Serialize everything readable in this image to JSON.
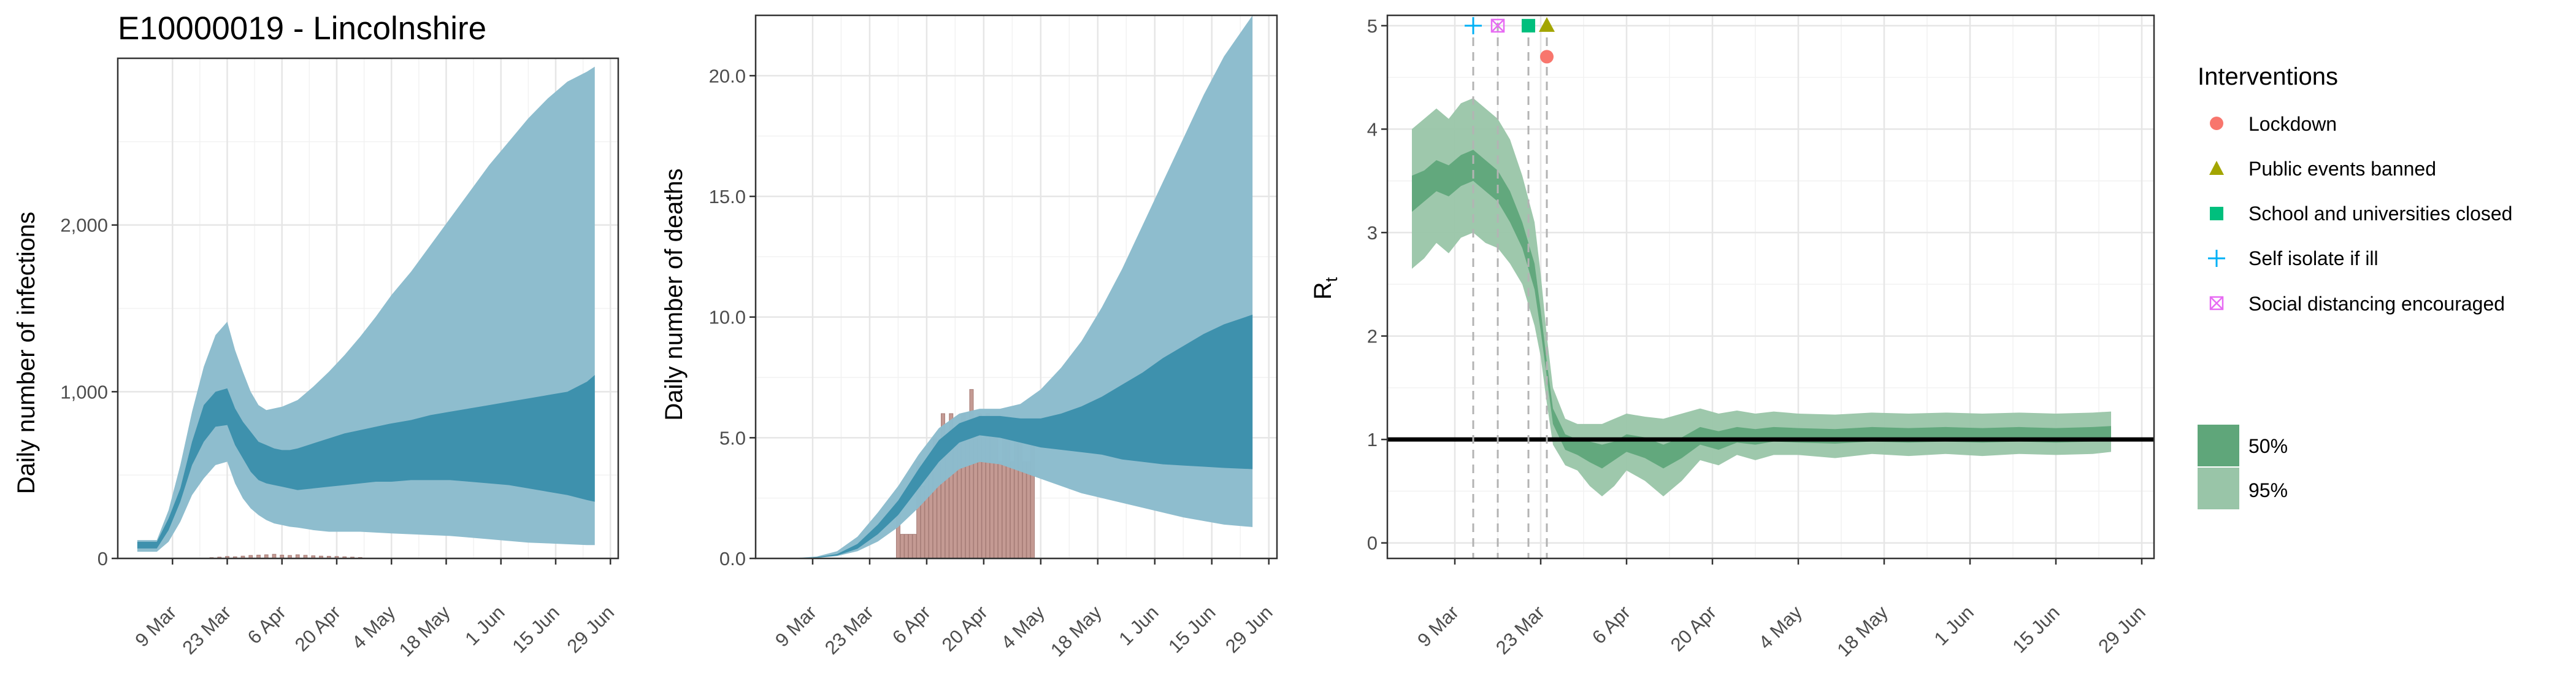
{
  "figure_title": "E10000019 - Lincolnshire",
  "colors": {
    "infections_band95": "#8cbccd",
    "infections_band50": "#3a8eab",
    "deaths_band95": "#8cbccd",
    "deaths_band50": "#3a8eab",
    "observed_bars": "#c49a93",
    "rt_band95": "#99c5a8",
    "rt_band50": "#5fa67a",
    "threshold_line": "#000000",
    "lockdown": "#f8766d",
    "public_events_banned": "#a3a500",
    "school_closed": "#00bf7d",
    "self_isolate": "#00b0f6",
    "social_distancing": "#e76bf3"
  },
  "legend": {
    "interventions_title": "Interventions",
    "interventions": [
      {
        "label": "Lockdown",
        "icon": "circle-icon",
        "color": "#f8766d"
      },
      {
        "label": "Public events banned",
        "icon": "triangle-icon",
        "color": "#a3a500"
      },
      {
        "label": "School and universities closed",
        "icon": "square-icon",
        "color": "#00bf7d"
      },
      {
        "label": "Self isolate if ill",
        "icon": "plus-icon",
        "color": "#00b0f6"
      },
      {
        "label": "Social distancing encouraged",
        "icon": "boxed-x-icon",
        "color": "#e76bf3"
      }
    ],
    "bands": [
      {
        "label": "50%",
        "color": "#5fa67a"
      },
      {
        "label": "95%",
        "color": "#99c5a8"
      }
    ]
  },
  "chart_data": [
    {
      "type": "area",
      "title": "E10000019 - Lincolnshire",
      "xlabel": "",
      "ylabel": "Daily number of infections",
      "x_ticks": [
        "9 Mar",
        "23 Mar",
        "6 Apr",
        "20 Apr",
        "4 May",
        "18 May",
        "1 Jun",
        "15 Jun",
        "29 Jun"
      ],
      "x_range": [
        "2020-02-24",
        "2020-07-01"
      ],
      "y_ticks": [
        "0",
        "1,000",
        "2,000"
      ],
      "ylim": [
        0,
        3000
      ],
      "grid": true,
      "series": [
        {
          "name": "",
          "x": [
            "2020-02-29",
            "2020-03-05",
            "2020-03-08",
            "2020-03-11",
            "2020-03-14",
            "2020-03-17",
            "2020-03-20",
            "2020-03-23",
            "2020-03-25",
            "2020-03-27",
            "2020-03-29",
            "2020-03-31",
            "2020-04-02",
            "2020-04-04",
            "2020-04-06",
            "2020-04-08",
            "2020-04-10",
            "2020-04-14",
            "2020-04-18",
            "2020-04-22",
            "2020-04-26",
            "2020-04-30",
            "2020-05-04",
            "2020-05-09",
            "2020-05-14",
            "2020-05-19",
            "2020-05-24",
            "2020-05-29",
            "2020-06-03",
            "2020-06-08",
            "2020-06-13",
            "2020-06-18",
            "2020-06-23",
            "2020-06-25"
          ],
          "q2_5": [
            40,
            40,
            100,
            220,
            380,
            480,
            560,
            580,
            450,
            360,
            300,
            260,
            230,
            210,
            200,
            190,
            185,
            170,
            160,
            160,
            160,
            155,
            150,
            145,
            140,
            135,
            125,
            115,
            105,
            95,
            90,
            85,
            80,
            80
          ],
          "q25": [
            60,
            60,
            170,
            340,
            560,
            700,
            790,
            800,
            680,
            600,
            520,
            470,
            450,
            440,
            430,
            420,
            410,
            420,
            430,
            440,
            450,
            460,
            460,
            470,
            470,
            470,
            460,
            450,
            440,
            420,
            400,
            380,
            350,
            340
          ],
          "q75": [
            100,
            100,
            240,
            420,
            700,
            920,
            1000,
            1020,
            900,
            820,
            760,
            700,
            680,
            660,
            650,
            650,
            660,
            690,
            720,
            750,
            770,
            790,
            810,
            830,
            860,
            880,
            900,
            920,
            940,
            960,
            980,
            1000,
            1060,
            1100
          ],
          "q97_5": [
            110,
            110,
            290,
            560,
            880,
            1150,
            1340,
            1420,
            1250,
            1120,
            1000,
            920,
            890,
            900,
            910,
            930,
            950,
            1030,
            1120,
            1220,
            1330,
            1450,
            1580,
            1720,
            1880,
            2040,
            2200,
            2360,
            2500,
            2640,
            2760,
            2860,
            2920,
            2950
          ]
        }
      ],
      "observed": {
        "name": "",
        "x": [
          "2020-03-19",
          "2020-03-21",
          "2020-03-23",
          "2020-03-25",
          "2020-03-27",
          "2020-03-29",
          "2020-03-31",
          "2020-04-02",
          "2020-04-04",
          "2020-04-06",
          "2020-04-08",
          "2020-04-10",
          "2020-04-12",
          "2020-04-14",
          "2020-04-16",
          "2020-04-18",
          "2020-04-20",
          "2020-04-22",
          "2020-04-24",
          "2020-04-26"
        ],
        "values": [
          5,
          8,
          12,
          10,
          14,
          18,
          20,
          22,
          25,
          20,
          18,
          22,
          19,
          16,
          14,
          13,
          12,
          10,
          8,
          6
        ]
      }
    },
    {
      "type": "area",
      "title": "",
      "xlabel": "",
      "ylabel": "Daily number of deaths",
      "x_ticks": [
        "9 Mar",
        "23 Mar",
        "6 Apr",
        "20 Apr",
        "4 May",
        "18 May",
        "1 Jun",
        "15 Jun",
        "29 Jun"
      ],
      "x_range": [
        "2020-02-24",
        "2020-07-01"
      ],
      "y_ticks": [
        "0.0",
        "5.0",
        "10.0",
        "15.0",
        "20.0"
      ],
      "ylim": [
        0,
        22.5
      ],
      "grid": true,
      "series": [
        {
          "name": "",
          "x": [
            "2020-02-29",
            "2020-03-05",
            "2020-03-10",
            "2020-03-15",
            "2020-03-20",
            "2020-03-25",
            "2020-03-30",
            "2020-04-04",
            "2020-04-09",
            "2020-04-14",
            "2020-04-19",
            "2020-04-24",
            "2020-04-29",
            "2020-05-04",
            "2020-05-09",
            "2020-05-14",
            "2020-05-19",
            "2020-05-24",
            "2020-05-29",
            "2020-06-03",
            "2020-06-08",
            "2020-06-13",
            "2020-06-18",
            "2020-06-25"
          ],
          "q2_5": [
            0,
            0,
            0.02,
            0.1,
            0.3,
            0.7,
            1.3,
            2.1,
            3.0,
            3.7,
            4.0,
            3.9,
            3.6,
            3.3,
            3.0,
            2.7,
            2.5,
            2.3,
            2.1,
            1.9,
            1.7,
            1.55,
            1.4,
            1.3
          ],
          "q25": [
            0,
            0,
            0.03,
            0.12,
            0.4,
            1.0,
            1.8,
            2.9,
            4.0,
            4.8,
            5.1,
            5.0,
            4.8,
            4.6,
            4.5,
            4.4,
            4.3,
            4.1,
            4.0,
            3.9,
            3.85,
            3.8,
            3.75,
            3.7
          ],
          "q75": [
            0,
            0,
            0.05,
            0.18,
            0.6,
            1.4,
            2.4,
            3.7,
            4.9,
            5.6,
            5.9,
            5.9,
            5.8,
            5.8,
            6.0,
            6.3,
            6.7,
            7.2,
            7.7,
            8.3,
            8.8,
            9.3,
            9.7,
            10.1
          ],
          "q97_5": [
            0,
            0.02,
            0.08,
            0.3,
            0.9,
            1.9,
            3.0,
            4.3,
            5.4,
            6.0,
            6.2,
            6.2,
            6.4,
            7.0,
            7.9,
            9.0,
            10.4,
            12.0,
            13.8,
            15.6,
            17.4,
            19.2,
            20.8,
            22.5
          ]
        }
      ],
      "observed": {
        "name": "",
        "x": [
          "2020-03-30",
          "2020-03-31",
          "2020-04-01",
          "2020-04-02",
          "2020-04-03",
          "2020-04-04",
          "2020-04-05",
          "2020-04-06",
          "2020-04-07",
          "2020-04-08",
          "2020-04-09",
          "2020-04-10",
          "2020-04-11",
          "2020-04-12",
          "2020-04-13",
          "2020-04-14",
          "2020-04-15",
          "2020-04-16",
          "2020-04-17",
          "2020-04-18",
          "2020-04-19",
          "2020-04-20",
          "2020-04-21",
          "2020-04-22",
          "2020-04-23",
          "2020-04-24",
          "2020-04-25",
          "2020-04-26",
          "2020-04-27",
          "2020-04-28",
          "2020-04-29",
          "2020-04-30",
          "2020-05-01",
          "2020-05-02"
        ],
        "values": [
          2,
          1,
          1,
          1,
          1,
          4,
          3,
          4,
          4,
          5,
          4,
          6,
          5,
          6,
          5,
          5,
          6,
          5,
          7,
          5,
          6,
          5,
          6,
          5,
          5,
          4,
          5,
          5,
          4,
          5,
          5,
          4,
          4,
          5
        ]
      }
    },
    {
      "type": "area",
      "title": "",
      "xlabel": "",
      "ylabel": "Rt",
      "x_ticks": [
        "9 Mar",
        "23 Mar",
        "6 Apr",
        "20 Apr",
        "4 May",
        "18 May",
        "1 Jun",
        "15 Jun",
        "29 Jun"
      ],
      "x_range": [
        "2020-02-27",
        "2020-07-01"
      ],
      "y_ticks": [
        "0",
        "1",
        "2",
        "3",
        "4",
        "5"
      ],
      "ylim": [
        -0.15,
        5.1
      ],
      "grid": true,
      "reference_line": 1,
      "series": [
        {
          "name": "",
          "x": [
            "2020-03-02",
            "2020-03-04",
            "2020-03-06",
            "2020-03-08",
            "2020-03-10",
            "2020-03-12",
            "2020-03-14",
            "2020-03-16",
            "2020-03-18",
            "2020-03-20",
            "2020-03-22",
            "2020-03-23",
            "2020-03-24",
            "2020-03-25",
            "2020-03-27",
            "2020-03-29",
            "2020-03-31",
            "2020-04-02",
            "2020-04-04",
            "2020-04-06",
            "2020-04-09",
            "2020-04-12",
            "2020-04-15",
            "2020-04-18",
            "2020-04-21",
            "2020-04-24",
            "2020-04-27",
            "2020-04-30",
            "2020-05-04",
            "2020-05-10",
            "2020-05-16",
            "2020-05-22",
            "2020-05-28",
            "2020-06-03",
            "2020-06-09",
            "2020-06-15",
            "2020-06-21",
            "2020-06-24"
          ],
          "q2_5": [
            2.65,
            2.75,
            2.9,
            2.8,
            2.95,
            3.0,
            2.9,
            2.85,
            2.7,
            2.5,
            2.1,
            1.8,
            1.35,
            0.95,
            0.75,
            0.7,
            0.55,
            0.45,
            0.55,
            0.7,
            0.6,
            0.45,
            0.6,
            0.8,
            0.75,
            0.85,
            0.8,
            0.85,
            0.85,
            0.82,
            0.86,
            0.84,
            0.86,
            0.84,
            0.86,
            0.85,
            0.86,
            0.88
          ],
          "q25": [
            3.2,
            3.3,
            3.4,
            3.35,
            3.45,
            3.5,
            3.4,
            3.3,
            3.1,
            2.85,
            2.45,
            2.05,
            1.6,
            1.15,
            0.9,
            0.85,
            0.78,
            0.72,
            0.8,
            0.88,
            0.82,
            0.72,
            0.82,
            0.95,
            0.9,
            0.97,
            0.95,
            0.98,
            0.97,
            0.96,
            0.98,
            0.97,
            0.98,
            0.97,
            0.98,
            0.97,
            0.98,
            0.99
          ],
          "q75": [
            3.55,
            3.6,
            3.7,
            3.65,
            3.75,
            3.8,
            3.7,
            3.6,
            3.4,
            3.1,
            2.7,
            2.25,
            1.75,
            1.3,
            1.05,
            1.0,
            0.98,
            0.95,
            0.98,
            1.05,
            1.02,
            0.95,
            1.02,
            1.12,
            1.08,
            1.12,
            1.1,
            1.12,
            1.11,
            1.1,
            1.12,
            1.11,
            1.12,
            1.11,
            1.12,
            1.11,
            1.12,
            1.13
          ],
          "q97_5": [
            4.0,
            4.1,
            4.2,
            4.1,
            4.25,
            4.3,
            4.2,
            4.1,
            3.9,
            3.55,
            3.1,
            2.6,
            2.0,
            1.5,
            1.2,
            1.15,
            1.15,
            1.15,
            1.2,
            1.25,
            1.22,
            1.2,
            1.25,
            1.3,
            1.25,
            1.28,
            1.25,
            1.27,
            1.25,
            1.24,
            1.26,
            1.25,
            1.26,
            1.25,
            1.26,
            1.25,
            1.26,
            1.27
          ]
        }
      ],
      "interventions": [
        {
          "label": "Self isolate if ill",
          "date": "2020-03-12",
          "marker": "plus"
        },
        {
          "label": "Social distancing encouraged",
          "date": "2020-03-16",
          "marker": "boxed-x"
        },
        {
          "label": "School and universities closed",
          "date": "2020-03-21",
          "marker": "square"
        },
        {
          "label": "Public events banned",
          "date": "2020-03-24",
          "marker": "triangle"
        },
        {
          "label": "Lockdown",
          "date": "2020-03-24",
          "marker": "circle"
        }
      ]
    }
  ]
}
